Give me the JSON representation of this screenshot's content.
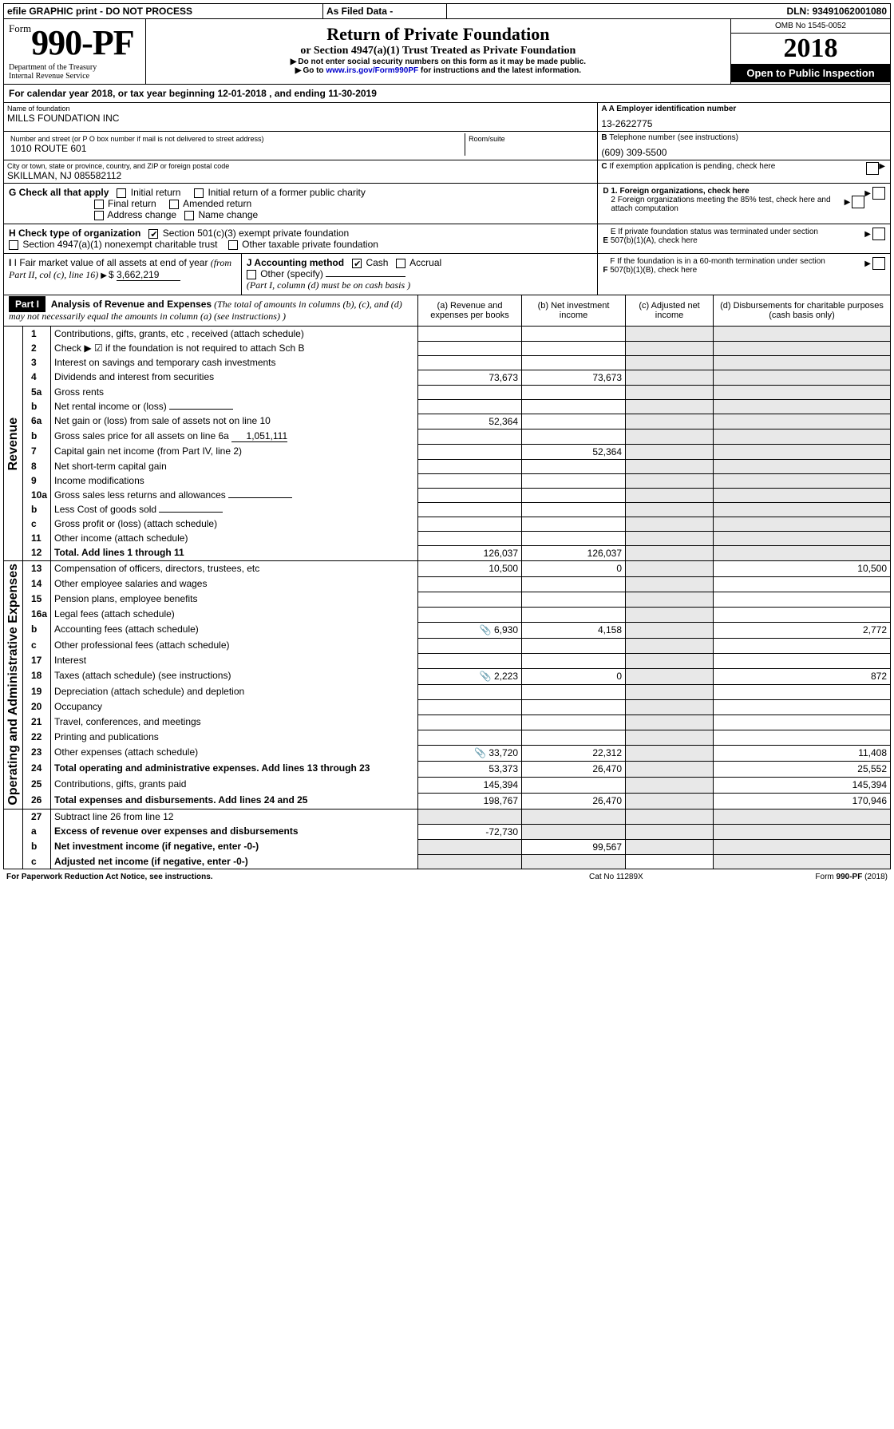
{
  "topbar": {
    "efile": "efile GRAPHIC print - DO NOT PROCESS",
    "asfiled": "As Filed Data -",
    "dln_label": "DLN:",
    "dln": "93491062001080"
  },
  "header": {
    "formpre": "Form",
    "formno": "990-PF",
    "dept": "Department of the Treasury",
    "irs": "Internal Revenue Service",
    "title": "Return of Private Foundation",
    "subtitle": "or Section 4947(a)(1) Trust Treated as Private Foundation",
    "warn1": "Do not enter social security numbers on this form as it may be made public.",
    "warn2_pre": "Go to ",
    "warn2_link": "www.irs.gov/Form990PF",
    "warn2_post": " for instructions and the latest information.",
    "omb_label": "OMB No",
    "omb": "1545-0052",
    "year": "2018",
    "otp": "Open to Public Inspection"
  },
  "calendar": {
    "line_pre": "For calendar year 2018, or tax year beginning ",
    "begin": "12-01-2018",
    "line_mid": " , and ending ",
    "end": "11-30-2019"
  },
  "id": {
    "name_label": "Name of foundation",
    "name": "MILLS FOUNDATION INC",
    "addr_label": "Number and street (or P O  box number if mail is not delivered to street address)",
    "room_label": "Room/suite",
    "addr": "1010 ROUTE 601",
    "city_label": "City or town, state or province, country, and ZIP or foreign postal code",
    "city": "SKILLMAN, NJ  085582112",
    "a_label": "A Employer identification number",
    "a_val": "13-2622775",
    "b_label": "B",
    "b_text": "Telephone number (see instructions)",
    "b_val": "(609) 309-5500",
    "c_label": "C",
    "c_text": "If exemption application is pending, check here"
  },
  "checks": {
    "g": "G Check all that apply",
    "g1": "Initial return",
    "g2": "Initial return of a former public charity",
    "g3": "Final return",
    "g4": "Amended return",
    "g5": "Address change",
    "g6": "Name change",
    "h": "H Check type of organization",
    "h1": "Section 501(c)(3) exempt private foundation",
    "h2": "Section 4947(a)(1) nonexempt charitable trust",
    "h3": "Other taxable private foundation",
    "i_pre": "I Fair market value of all assets at end of year ",
    "i_mid": "(from Part II, col  (c), line 16) ",
    "i_val": "3,662,219",
    "j": "J Accounting method",
    "j1": "Cash",
    "j2": "Accrual",
    "j3": "Other (specify)",
    "j_note": "(Part I, column (d) must be on cash basis )",
    "d1": "D 1. Foreign organizations, check here",
    "d2": "2  Foreign organizations meeting the 85% test, check here and attach computation",
    "e": "E  If private foundation status was terminated under section 507(b)(1)(A), check here",
    "f": "F  If the foundation is in a 60-month termination under section 507(b)(1)(B), check here"
  },
  "part1": {
    "label": "Part I",
    "title": "Analysis of Revenue and Expenses",
    "title_par": " (The total of amounts in columns (b), (c), and (d) may not necessarily equal the amounts in column (a) (see instructions) )",
    "col_a": "(a)   Revenue and expenses per books",
    "col_b": "(b)   Net investment income",
    "col_c": "(c)   Adjusted net income",
    "col_d": "(d)   Disbursements for charitable purposes (cash basis only)",
    "side_rev": "Revenue",
    "side_exp": "Operating and Administrative Expenses"
  },
  "rows": [
    {
      "n": "1",
      "d": "Contributions, gifts, grants, etc , received (attach schedule)",
      "a": "",
      "b": "",
      "c": "",
      "dd": ""
    },
    {
      "n": "2",
      "d": "Check ▶ ☑ if the foundation is not required to attach Sch  B",
      "a": "",
      "b": "",
      "c": "",
      "dd": "",
      "boldnot": true
    },
    {
      "n": "3",
      "d": "Interest on savings and temporary cash investments",
      "a": "",
      "b": "",
      "c": "",
      "dd": ""
    },
    {
      "n": "4",
      "d": "Dividends and interest from securities",
      "a": "73,673",
      "b": "73,673",
      "c": "",
      "dd": ""
    },
    {
      "n": "5a",
      "d": "Gross rents",
      "a": "",
      "b": "",
      "c": "",
      "dd": ""
    },
    {
      "n": "b",
      "d": "Net rental income or (loss)",
      "a": "",
      "b": "",
      "c": "",
      "dd": "",
      "inline": true
    },
    {
      "n": "6a",
      "d": "Net gain or (loss) from sale of assets not on line 10",
      "a": "52,364",
      "b": "",
      "c": "",
      "dd": ""
    },
    {
      "n": "b",
      "d": "Gross sales price for all assets on line 6a",
      "a": "",
      "b": "",
      "c": "",
      "dd": "",
      "inlineamt": "1,051,111"
    },
    {
      "n": "7",
      "d": "Capital gain net income (from Part IV, line 2)",
      "a": "",
      "b": "52,364",
      "c": "",
      "dd": ""
    },
    {
      "n": "8",
      "d": "Net short-term capital gain",
      "a": "",
      "b": "",
      "c": "",
      "dd": ""
    },
    {
      "n": "9",
      "d": "Income modifications",
      "a": "",
      "b": "",
      "c": "",
      "dd": ""
    },
    {
      "n": "10a",
      "d": "Gross sales less returns and allowances",
      "a": "",
      "b": "",
      "c": "",
      "dd": "",
      "inline": true
    },
    {
      "n": "b",
      "d": "Less  Cost of goods sold",
      "a": "",
      "b": "",
      "c": "",
      "dd": "",
      "inline": true
    },
    {
      "n": "c",
      "d": "Gross profit or (loss) (attach schedule)",
      "a": "",
      "b": "",
      "c": "",
      "dd": ""
    },
    {
      "n": "11",
      "d": "Other income (attach schedule)",
      "a": "",
      "b": "",
      "c": "",
      "dd": ""
    },
    {
      "n": "12",
      "d": "Total. Add lines 1 through 11",
      "a": "126,037",
      "b": "126,037",
      "c": "",
      "dd": "",
      "bold": true
    }
  ],
  "rows2": [
    {
      "n": "13",
      "d": "Compensation of officers, directors, trustees, etc",
      "a": "10,500",
      "b": "0",
      "c": "",
      "dd": "10,500"
    },
    {
      "n": "14",
      "d": "Other employee salaries and wages",
      "a": "",
      "b": "",
      "c": "",
      "dd": ""
    },
    {
      "n": "15",
      "d": "Pension plans, employee benefits",
      "a": "",
      "b": "",
      "c": "",
      "dd": ""
    },
    {
      "n": "16a",
      "d": "Legal fees (attach schedule)",
      "a": "",
      "b": "",
      "c": "",
      "dd": ""
    },
    {
      "n": "b",
      "d": "Accounting fees (attach schedule)",
      "a": "6,930",
      "b": "4,158",
      "c": "",
      "dd": "2,772",
      "icon": true
    },
    {
      "n": "c",
      "d": "Other professional fees (attach schedule)",
      "a": "",
      "b": "",
      "c": "",
      "dd": ""
    },
    {
      "n": "17",
      "d": "Interest",
      "a": "",
      "b": "",
      "c": "",
      "dd": ""
    },
    {
      "n": "18",
      "d": "Taxes (attach schedule) (see instructions)",
      "a": "2,223",
      "b": "0",
      "c": "",
      "dd": "872",
      "icon": true
    },
    {
      "n": "19",
      "d": "Depreciation (attach schedule) and depletion",
      "a": "",
      "b": "",
      "c": "",
      "dd": ""
    },
    {
      "n": "20",
      "d": "Occupancy",
      "a": "",
      "b": "",
      "c": "",
      "dd": ""
    },
    {
      "n": "21",
      "d": "Travel, conferences, and meetings",
      "a": "",
      "b": "",
      "c": "",
      "dd": ""
    },
    {
      "n": "22",
      "d": "Printing and publications",
      "a": "",
      "b": "",
      "c": "",
      "dd": ""
    },
    {
      "n": "23",
      "d": "Other expenses (attach schedule)",
      "a": "33,720",
      "b": "22,312",
      "c": "",
      "dd": "11,408",
      "icon": true
    },
    {
      "n": "24",
      "d": "Total operating and administrative expenses. Add lines 13 through 23",
      "a": "53,373",
      "b": "26,470",
      "c": "",
      "dd": "25,552",
      "bold": true
    },
    {
      "n": "25",
      "d": "Contributions, gifts, grants paid",
      "a": "145,394",
      "b": "",
      "c": "",
      "dd": "145,394"
    },
    {
      "n": "26",
      "d": "Total expenses and disbursements. Add lines 24 and 25",
      "a": "198,767",
      "b": "26,470",
      "c": "",
      "dd": "170,946",
      "bold": true
    }
  ],
  "rows3": [
    {
      "n": "27",
      "d": "Subtract line 26 from line 12",
      "a": "",
      "b": "",
      "c": "",
      "dd": ""
    },
    {
      "n": "a",
      "d": "Excess of revenue over expenses and disbursements",
      "a": "-72,730",
      "b": "",
      "c": "",
      "dd": "",
      "bold": true
    },
    {
      "n": "b",
      "d": "Net investment income (if negative, enter -0-)",
      "a": "",
      "b": "99,567",
      "c": "",
      "dd": "",
      "bold": true
    },
    {
      "n": "c",
      "d": "Adjusted net income (if negative, enter -0-)",
      "a": "",
      "b": "",
      "c": "",
      "dd": "",
      "bold": true
    }
  ],
  "footer": {
    "left": "For Paperwork Reduction Act Notice, see instructions.",
    "mid": "Cat  No  11289X",
    "right": "Form 990-PF (2018)"
  },
  "style": {
    "col_widths": {
      "side": 24,
      "num": 34,
      "desc": 460,
      "a": 130,
      "b": 130,
      "c": 110,
      "d": 150
    }
  }
}
